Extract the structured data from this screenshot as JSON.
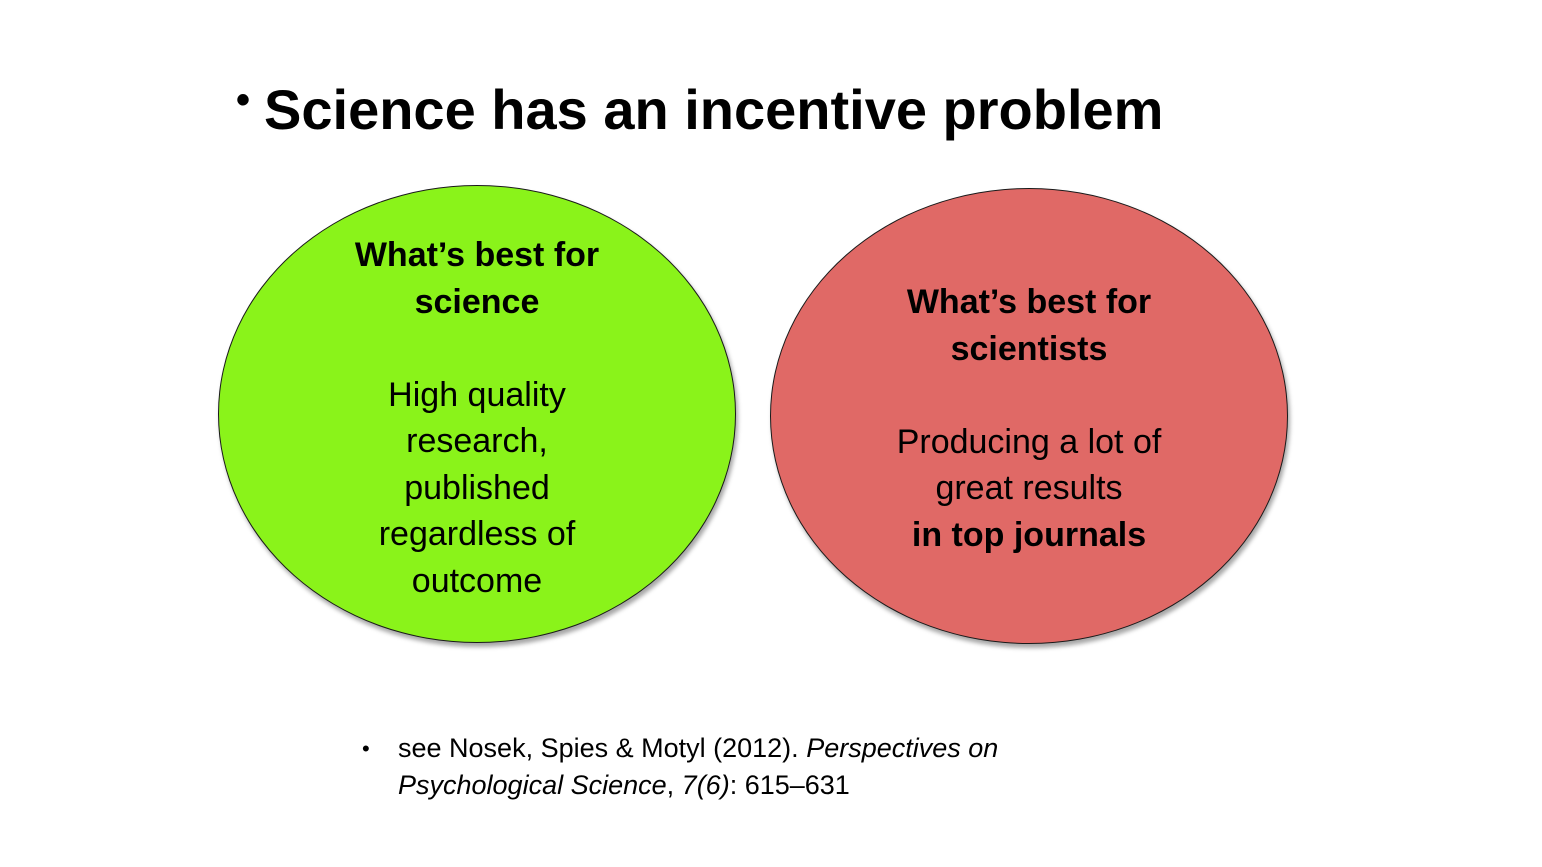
{
  "title": {
    "bullet": "•",
    "text": "Science has an incentive problem"
  },
  "left_ellipse": {
    "fill": "#8af31a",
    "heading_lines": [
      "What’s best for",
      "science"
    ],
    "body_lines": [
      "High quality",
      "research,",
      "published",
      "regardless of",
      "outcome"
    ]
  },
  "right_ellipse": {
    "fill": "#e06966",
    "heading_lines": [
      "What’s best for",
      "scientists"
    ],
    "body_lines": [
      "Producing a lot of",
      "great results"
    ],
    "emphasis_line": "in top journals"
  },
  "reference": {
    "bullet": "•",
    "line1_prefix": "see Nosek, Spies & Motyl (2012). ",
    "line1_italic": "Perspectives on",
    "line2_italic_journal": "Psychological Science",
    "line2_sep": ", ",
    "line2_italic_volume": "7(6)",
    "line2_pages": ": 615–631"
  }
}
